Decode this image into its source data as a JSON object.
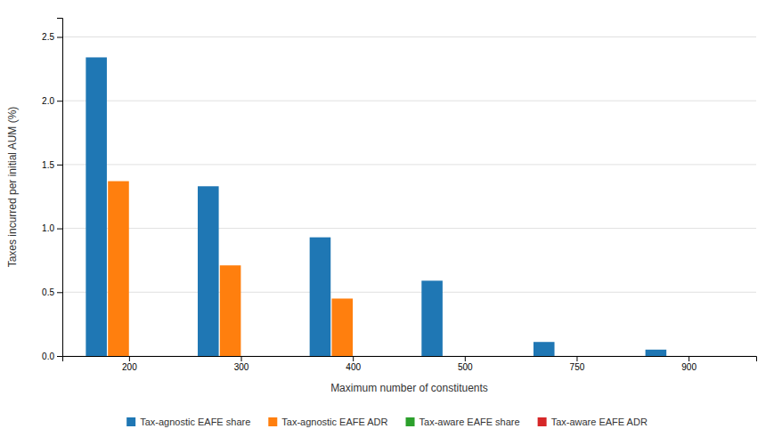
{
  "chart_data": {
    "type": "bar",
    "categories": [
      "200",
      "300",
      "400",
      "500",
      "750",
      "900"
    ],
    "series": [
      {
        "name": "Tax-agnostic EAFE share",
        "values": [
          2.34,
          1.33,
          0.93,
          0.59,
          0.11,
          0.05
        ]
      },
      {
        "name": "Tax-agnostic EAFE ADR",
        "values": [
          1.37,
          0.71,
          0.45,
          0.0,
          0.0,
          0.0
        ]
      },
      {
        "name": "Tax-aware EAFE share",
        "values": [
          0.0,
          0.0,
          0.0,
          0.0,
          0.0,
          0.0
        ]
      },
      {
        "name": "Tax-aware EAFE ADR",
        "values": [
          0.0,
          0.0,
          0.0,
          0.0,
          0.0,
          0.0
        ]
      }
    ],
    "xlabel": "Maximum number of constituents",
    "ylabel": "Taxes incurred per initial AUM (%)",
    "ylim": [
      0,
      2.65
    ],
    "yticks": [
      {
        "value": 0.0,
        "label": "0.0"
      },
      0.5,
      {
        "value": 1.0,
        "label": "1.0"
      },
      1.5,
      {
        "value": 2.0,
        "label": "2.0"
      },
      2.5
    ],
    "grid": true,
    "legend": "bottom"
  }
}
